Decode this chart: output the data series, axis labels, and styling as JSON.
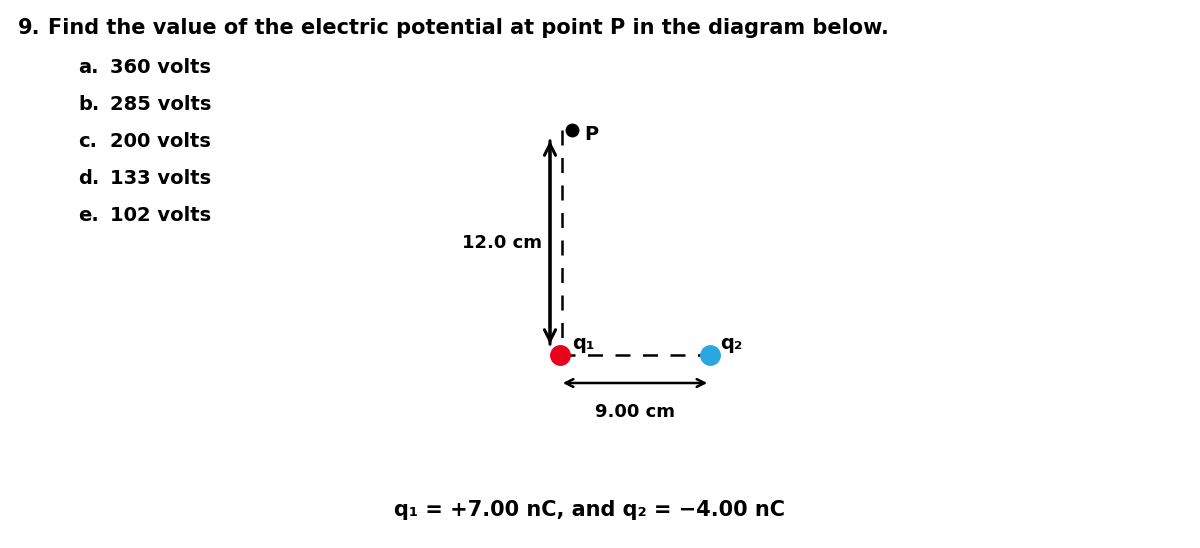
{
  "title_number": "9.",
  "title_text": "Find the value of the electric potential at point P in the diagram below.",
  "options": [
    {
      "letter": "a.",
      "text": "360 volts"
    },
    {
      "letter": "b.",
      "text": "285 volts"
    },
    {
      "letter": "c.",
      "text": "200 volts"
    },
    {
      "letter": "d.",
      "text": "133 volts"
    },
    {
      "letter": "e.",
      "text": "102 volts"
    }
  ],
  "diagram": {
    "q1_color": "#e8001c",
    "q2_color": "#29a8e0",
    "q1_label": "q₁",
    "q2_label": "q₂",
    "P_label": "P",
    "vertical_length_label": "12.0 cm",
    "horizontal_length_label": "9.00 cm"
  },
  "equation": "q₁ = +7.00 nC, and q₂ = −4.00 nC",
  "bg_color": "#ffffff",
  "text_color": "#000000",
  "font_size_title": 15,
  "font_size_options": 14,
  "font_size_diagram": 13,
  "font_size_equation": 15
}
